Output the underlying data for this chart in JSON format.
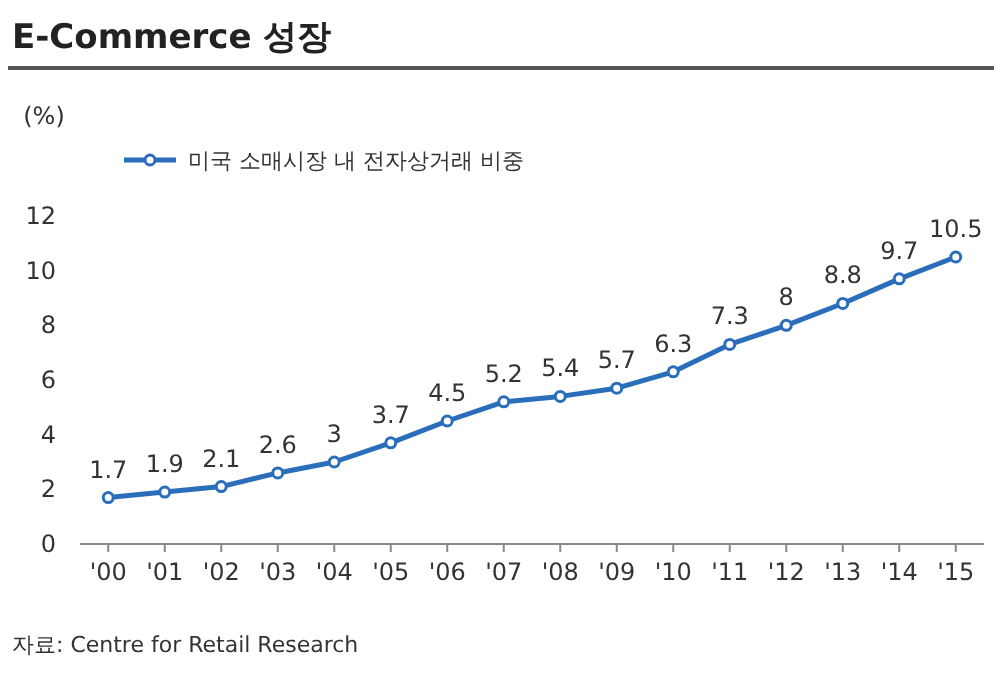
{
  "chart_data": {
    "type": "line",
    "title": "E-Commerce 성장",
    "ylabel": "(%)",
    "categories": [
      "'00",
      "'01",
      "'02",
      "'03",
      "'04",
      "'05",
      "'06",
      "'07",
      "'08",
      "'09",
      "'10",
      "'11",
      "'12",
      "'13",
      "'14",
      "'15"
    ],
    "series": [
      {
        "name": "미국 소매시장 내 전자상거래 비중",
        "color": "#2a6ebb",
        "values": [
          1.7,
          1.9,
          2.1,
          2.6,
          3,
          3.7,
          4.5,
          5.2,
          5.4,
          5.7,
          6.3,
          7.3,
          8,
          8.8,
          9.7,
          10.5
        ]
      }
    ],
    "ylim": [
      0,
      12
    ],
    "yticks": [
      0,
      2,
      4,
      6,
      8,
      10,
      12
    ],
    "data_labels": true,
    "marker": "circle",
    "legend": "top left",
    "grid": false,
    "annotations": [
      "자료: Centre for Retail Research"
    ]
  }
}
